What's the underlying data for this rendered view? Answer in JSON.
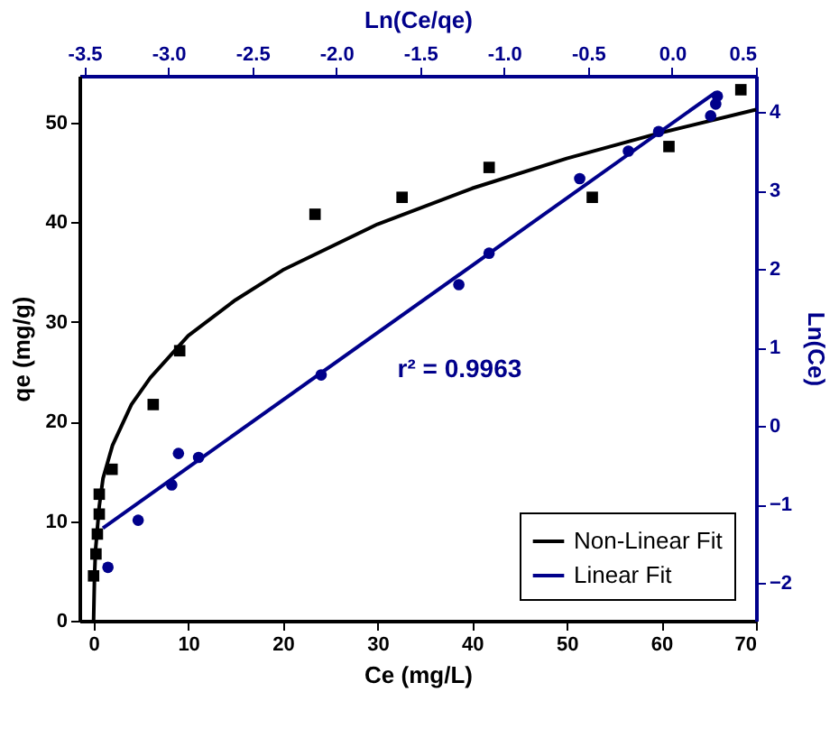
{
  "chart_data": [
    {
      "type": "scatter",
      "xlabel": "Ce (mg/L)",
      "ylabel": "qe (mg/g)",
      "xlim": [
        -1.5,
        70
      ],
      "xticks": [
        0,
        10,
        20,
        30,
        40,
        50,
        60,
        70
      ],
      "ylim": [
        0,
        54.7
      ],
      "yticks": [
        0,
        10,
        20,
        30,
        40,
        50
      ],
      "grid": false,
      "legend": "bottom right",
      "series": [
        {
          "marker": "square",
          "color": "#000000",
          "x": [
            0.0,
            0.25,
            0.4,
            0.6,
            0.6,
            1.95,
            6.3,
            9.1,
            23.4,
            32.6,
            41.8,
            52.7,
            60.8,
            68.4
          ],
          "values": [
            4.5,
            6.7,
            8.7,
            10.7,
            12.7,
            15.2,
            21.7,
            27.1,
            40.8,
            42.5,
            45.5,
            42.5,
            47.6,
            53.3
          ]
        },
        {
          "type": "line",
          "name": "Non-Linear Fit",
          "color": "#000000",
          "x": [
            0.0,
            0.1,
            0.2,
            0.6,
            1,
            2,
            4,
            6,
            10,
            15,
            20,
            30,
            40,
            50,
            60,
            70
          ],
          "values": [
            0,
            4.5,
            7,
            11.5,
            14.3,
            17.6,
            21.7,
            24.4,
            28.6,
            32.2,
            35.2,
            39.8,
            43.4,
            46.4,
            49.0,
            51.3
          ]
        }
      ]
    },
    {
      "type": "scatter",
      "xlabel": "Ln(Ce/qe)",
      "ylabel": "Ln(Ce)",
      "xlim": [
        -3.53,
        0.5
      ],
      "xticks": [
        {
          "value": -3.5,
          "label": "-3.5"
        },
        {
          "value": -3.0,
          "label": "-3.0"
        },
        {
          "value": -2.5,
          "label": "-2.5"
        },
        {
          "value": -2.0,
          "label": "-2.0"
        },
        {
          "value": -1.5,
          "label": "-1.5"
        },
        {
          "value": -1.0,
          "label": "-1.0"
        },
        {
          "value": -0.5,
          "label": "-0.5"
        },
        {
          "value": 0.0,
          "label": "0.0"
        },
        {
          "value": 0.5,
          "label": "0.5"
        }
      ],
      "ylim": [
        -2.48,
        4.46
      ],
      "yticks": [
        -2,
        -1,
        0,
        1,
        2,
        3,
        4
      ],
      "grid": false,
      "legend": "bottom right",
      "annotations": [
        "r² = 0.9963"
      ],
      "series": [
        {
          "marker": "circle",
          "color": "#00008b",
          "x": [
            -3.36,
            -3.18,
            -2.98,
            -2.94,
            -2.82,
            -2.09,
            -1.27,
            -1.09,
            -0.55,
            -0.26,
            -0.08,
            0.23,
            0.26,
            0.27
          ],
          "values": [
            -1.8,
            -1.2,
            -0.75,
            -0.35,
            -0.4,
            0.65,
            1.8,
            2.2,
            3.15,
            3.5,
            3.75,
            3.95,
            4.1,
            4.2
          ]
        },
        {
          "type": "line",
          "name": "Linear Fit",
          "color": "#00008b",
          "x": [
            -3.39,
            0.26
          ],
          "values": [
            -1.3,
            4.25
          ]
        }
      ]
    }
  ]
}
